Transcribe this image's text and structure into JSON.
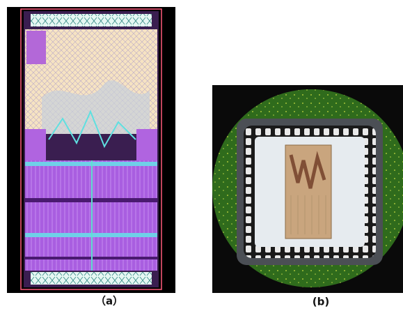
{
  "panels": [
    {
      "label": "（a）"
    },
    {
      "label": "(b)"
    }
  ]
}
